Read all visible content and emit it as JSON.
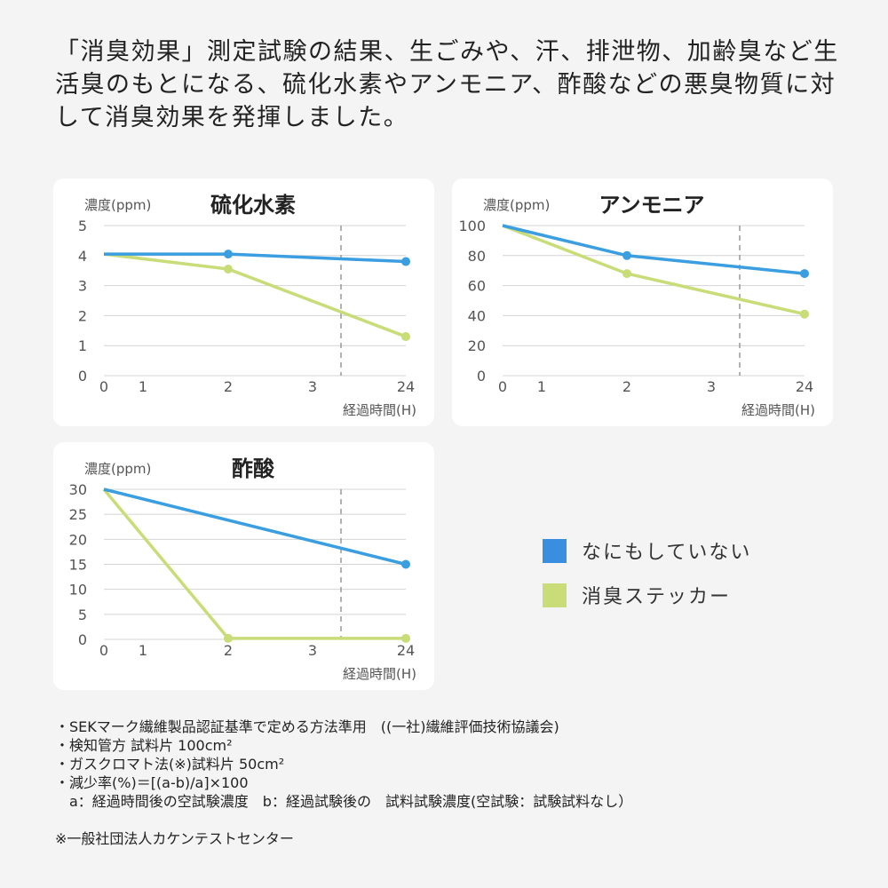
{
  "intro": "「消臭効果」測定試験の結果、生ごみや、汗、排泄物、加齢臭など生活臭のもとになる、硫化水素やアンモニア、酢酸などの悪臭物質に対して消臭効果を発揮しました。",
  "legend": [
    {
      "label": "なにもしていない",
      "color": "#3a8ee0"
    },
    {
      "label": "消臭ステッカー",
      "color": "#c8dc78"
    }
  ],
  "chart_data": [
    {
      "type": "line",
      "title": "硫化水素",
      "ylabel": "濃度(ppm)",
      "xlabel": "経過時間(H)",
      "x_ticks": [
        "0",
        "1",
        "2",
        "3",
        "24"
      ],
      "y_ticks": [
        "0",
        "1",
        "2",
        "3",
        "4",
        "5"
      ],
      "ylim": [
        0,
        5
      ],
      "grid": true,
      "axis_break": "between 3 and 24",
      "series": [
        {
          "name": "なにもしていない",
          "x": [
            0,
            2,
            24
          ],
          "y": [
            4.05,
            4.05,
            3.8
          ],
          "color": "#3a9ee0"
        },
        {
          "name": "消臭ステッカー",
          "x": [
            0,
            2,
            24
          ],
          "y": [
            4.05,
            3.55,
            1.3
          ],
          "color": "#c8dc78"
        }
      ]
    },
    {
      "type": "line",
      "title": "アンモニア",
      "ylabel": "濃度(ppm)",
      "xlabel": "経過時間(H)",
      "x_ticks": [
        "0",
        "1",
        "2",
        "3",
        "24"
      ],
      "y_ticks": [
        "0",
        "20",
        "40",
        "60",
        "80",
        "100"
      ],
      "ylim": [
        0,
        100
      ],
      "grid": true,
      "axis_break": "between 3 and 24",
      "series": [
        {
          "name": "なにもしていない",
          "x": [
            0,
            2,
            24
          ],
          "y": [
            100,
            80,
            68
          ],
          "color": "#3a9ee0"
        },
        {
          "name": "消臭ステッカー",
          "x": [
            0,
            2,
            24
          ],
          "y": [
            100,
            68,
            41
          ],
          "color": "#c8dc78"
        }
      ]
    },
    {
      "type": "line",
      "title": "酢酸",
      "ylabel": "濃度(ppm)",
      "xlabel": "経過時間(H)",
      "x_ticks": [
        "0",
        "1",
        "2",
        "3",
        "24"
      ],
      "y_ticks": [
        "0",
        "5",
        "10",
        "15",
        "20",
        "25",
        "30"
      ],
      "ylim": [
        0,
        30
      ],
      "grid": true,
      "axis_break": "between 3 and 24",
      "series": [
        {
          "name": "なにもしていない",
          "x": [
            0,
            24
          ],
          "y": [
            30,
            15
          ],
          "color": "#3a9ee0"
        },
        {
          "name": "消臭ステッカー",
          "x": [
            0,
            2,
            24
          ],
          "y": [
            30,
            0.2,
            0.2
          ],
          "color": "#c8dc78"
        }
      ]
    }
  ],
  "notes": [
    "・SEKマーク繊維製品認証基準で定める方法準用　((一社)繊維評価技術協議会)",
    "・検知管方 試料片 100cm²",
    "・ガスクロマト法(※)試料片 50cm²",
    "・減少率(%)＝[(a-b)/a]×100",
    "　a：経過時間後の空試験濃度　b：経過試験後の　試料試験濃度(空試験：試験試料なし）",
    "",
    "※一般社団法人カケンテストセンター"
  ]
}
